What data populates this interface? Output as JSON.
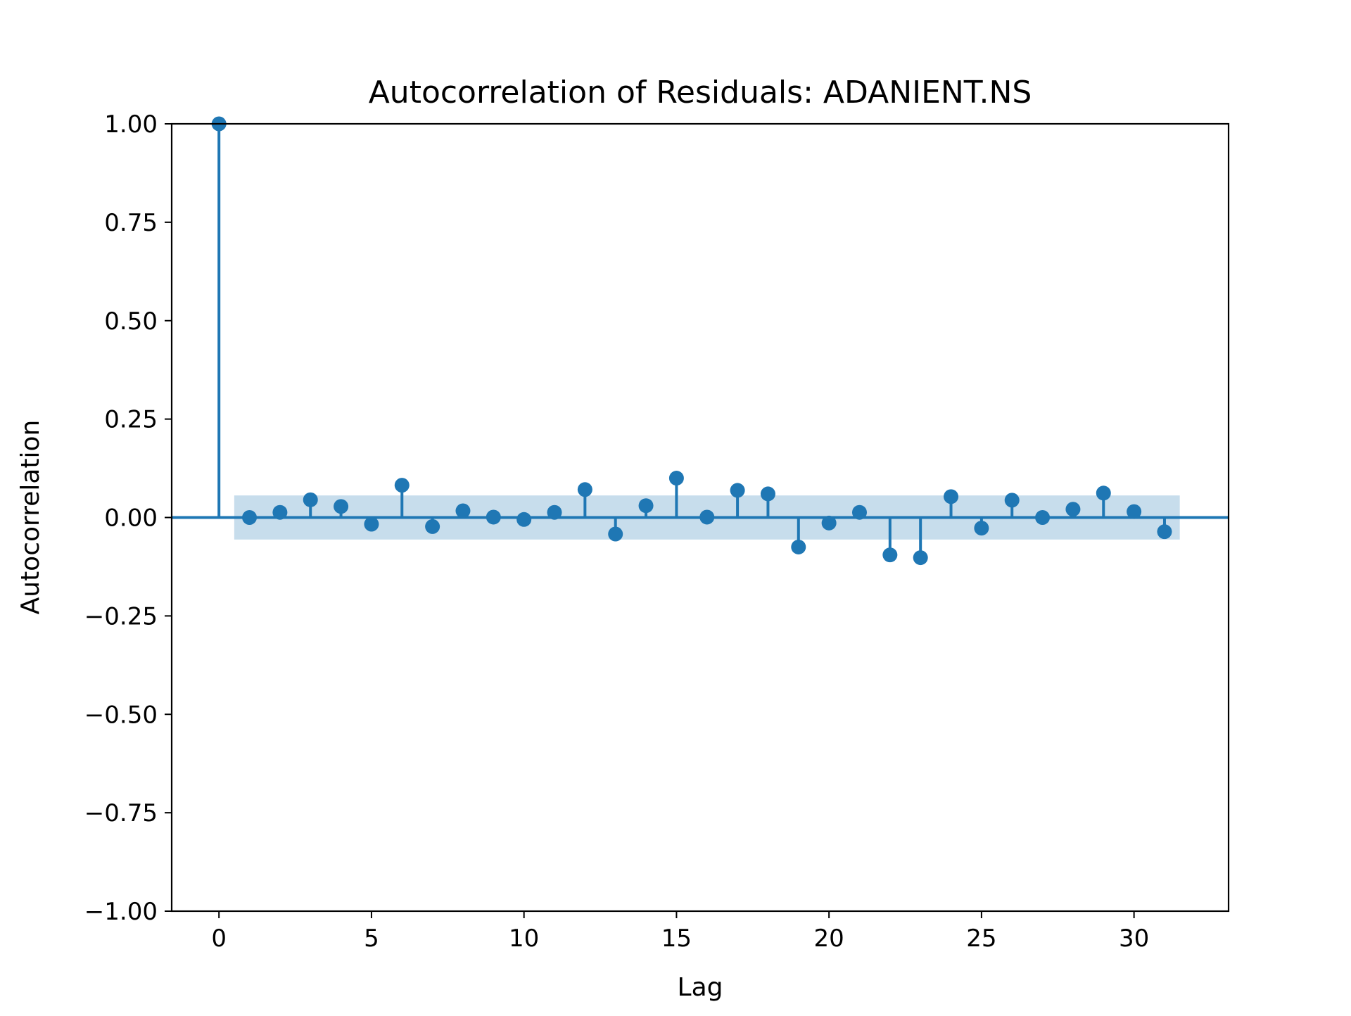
{
  "chart_data": {
    "type": "stem",
    "title": "Autocorrelation of Residuals: ADANIENT.NS",
    "xlabel": "Lag",
    "ylabel": "Autocorrelation",
    "xlim": [
      -1.55,
      33.1
    ],
    "ylim": [
      -1.0,
      1.0
    ],
    "xticks": [
      0,
      5,
      10,
      15,
      20,
      25,
      30
    ],
    "xtick_labels": [
      "0",
      "5",
      "10",
      "15",
      "20",
      "25",
      "30"
    ],
    "yticks": [
      -1.0,
      -0.75,
      -0.5,
      -0.25,
      0.0,
      0.25,
      0.5,
      0.75,
      1.0
    ],
    "ytick_labels": [
      "−1.00",
      "−0.75",
      "−0.50",
      "−0.25",
      "0.00",
      "0.25",
      "0.50",
      "0.75",
      "1.00"
    ],
    "lags": [
      0,
      1,
      2,
      3,
      4,
      5,
      6,
      7,
      8,
      9,
      10,
      11,
      12,
      13,
      14,
      15,
      16,
      17,
      18,
      19,
      20,
      21,
      22,
      23,
      24,
      25,
      26,
      27,
      28,
      29,
      30,
      31
    ],
    "values": [
      1.0,
      0.0,
      0.013,
      0.045,
      0.028,
      -0.017,
      0.082,
      -0.023,
      0.017,
      0.001,
      -0.005,
      0.013,
      0.071,
      -0.042,
      0.03,
      0.1,
      0.001,
      0.069,
      0.06,
      -0.075,
      -0.014,
      0.013,
      -0.095,
      -0.102,
      0.053,
      -0.027,
      0.044,
      0.0,
      0.021,
      0.062,
      0.015,
      -0.036
    ],
    "confidence_band": {
      "x_range": [
        0.5,
        31.5
      ],
      "lower": -0.056,
      "upper": 0.056
    },
    "grid": false,
    "colors": {
      "marker": "#1f77b4",
      "band": "#1f77b4",
      "band_opacity": 0.25,
      "axes": "#000000"
    }
  }
}
